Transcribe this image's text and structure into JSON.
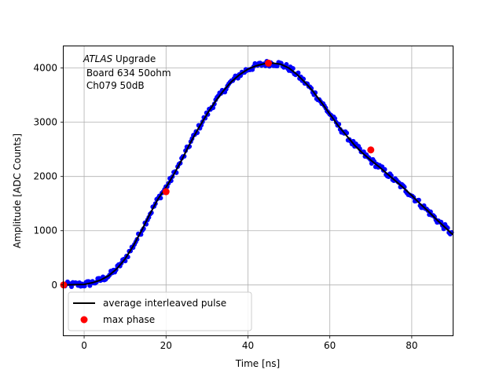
{
  "chart_data": {
    "type": "scatter",
    "title": "",
    "xlabel": "Time [ns]",
    "ylabel": "Amplitude [ADC Counts]",
    "xlim": [
      -5,
      90
    ],
    "ylim": [
      -930,
      4400
    ],
    "xticks": [
      0,
      20,
      40,
      60,
      80
    ],
    "yticks": [
      0,
      1000,
      2000,
      3000,
      4000
    ],
    "grid": true,
    "annotation": {
      "line1_italic": "ATLAS",
      "line1_rest": " Upgrade",
      "line2": " Board 634 50ohm",
      "line3": " Ch079 50dB"
    },
    "legend": {
      "placement": "lower-left",
      "entries": [
        "average interleaved pulse",
        "max phase"
      ]
    },
    "series": [
      {
        "name": "average interleaved pulse",
        "kind": "line",
        "color": "#000000",
        "x": [
          -5,
          0,
          2,
          4,
          6,
          8,
          10,
          12,
          14,
          16,
          18,
          20,
          22,
          24,
          26,
          28,
          30,
          32,
          34,
          36,
          38,
          40,
          42,
          44,
          46,
          48,
          50,
          52,
          54,
          56,
          58,
          60,
          62,
          64,
          66,
          68,
          70,
          72,
          74,
          76,
          78,
          80,
          82,
          84,
          86,
          88,
          90
        ],
        "y": [
          0,
          10,
          40,
          90,
          170,
          300,
          480,
          720,
          1000,
          1300,
          1580,
          1800,
          2050,
          2330,
          2630,
          2900,
          3150,
          3380,
          3580,
          3750,
          3880,
          3980,
          4040,
          4080,
          4090,
          4070,
          4000,
          3880,
          3730,
          3560,
          3360,
          3150,
          2940,
          2760,
          2580,
          2430,
          2300,
          2180,
          2050,
          1920,
          1790,
          1650,
          1500,
          1360,
          1210,
          1070,
          930
        ]
      },
      {
        "name": "interleaved samples",
        "kind": "scatter",
        "color": "#0000ff",
        "note": "dense blue sample points scattered around the average pulse"
      },
      {
        "name": "max phase",
        "kind": "scatter",
        "color": "#ff0000",
        "x": [
          -5,
          20,
          45,
          70
        ],
        "y": [
          0,
          1720,
          4090,
          2490
        ]
      }
    ]
  }
}
